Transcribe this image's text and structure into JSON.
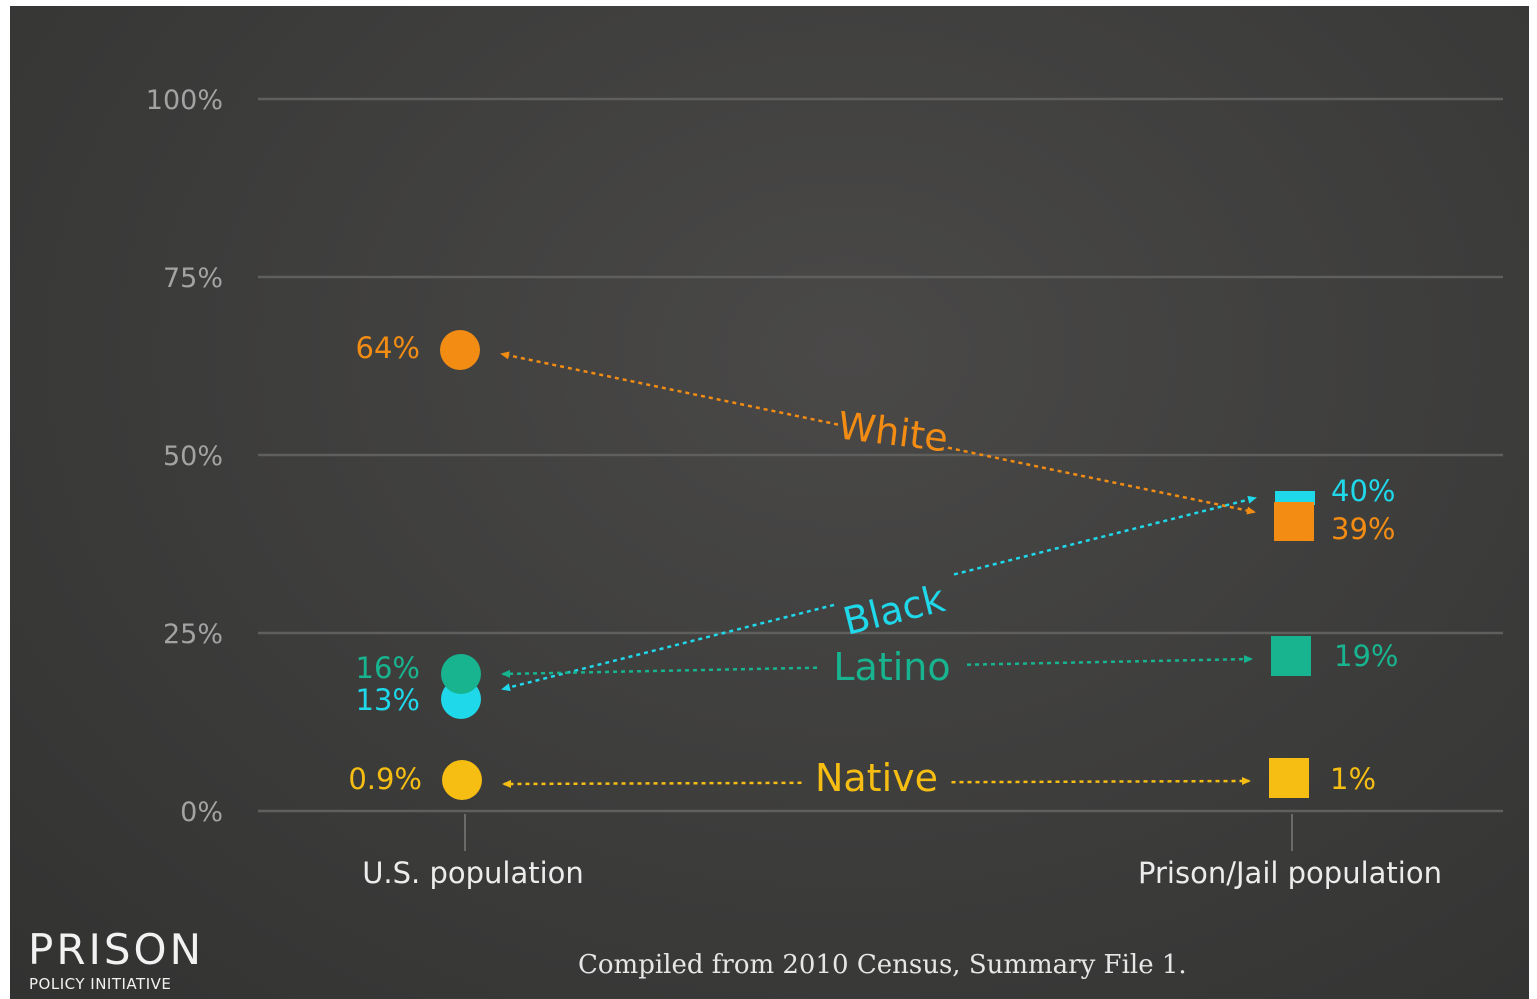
{
  "chart_data": {
    "type": "slope",
    "categories": [
      "U.S. population",
      "Prison/Jail population"
    ],
    "ylim": [
      0,
      100
    ],
    "y_ticks": [
      {
        "value": 0,
        "label": "0%"
      },
      {
        "value": 25,
        "label": "25%"
      },
      {
        "value": 50,
        "label": "50%"
      },
      {
        "value": 75,
        "label": "75%"
      },
      {
        "value": 100,
        "label": "100%"
      }
    ],
    "grid": true,
    "series": [
      {
        "name": "White",
        "color": "#f28c13",
        "values": [
          64,
          39
        ],
        "labels": [
          "64%",
          "39%"
        ]
      },
      {
        "name": "Black",
        "color": "#1fd8ea",
        "values": [
          13,
          40
        ],
        "labels": [
          "13%",
          "40%"
        ]
      },
      {
        "name": "Latino",
        "color": "#17b48f",
        "values": [
          16,
          19
        ],
        "labels": [
          "16%",
          "19%"
        ]
      },
      {
        "name": "Native",
        "color": "#f6bd12",
        "values": [
          0.9,
          1
        ],
        "labels": [
          "0.9%",
          "1%"
        ]
      }
    ]
  },
  "footnote": "Compiled from 2010 Census, Summary File 1.",
  "logo": {
    "line1": "PRISON",
    "line2": "POLICY INITIATIVE"
  }
}
